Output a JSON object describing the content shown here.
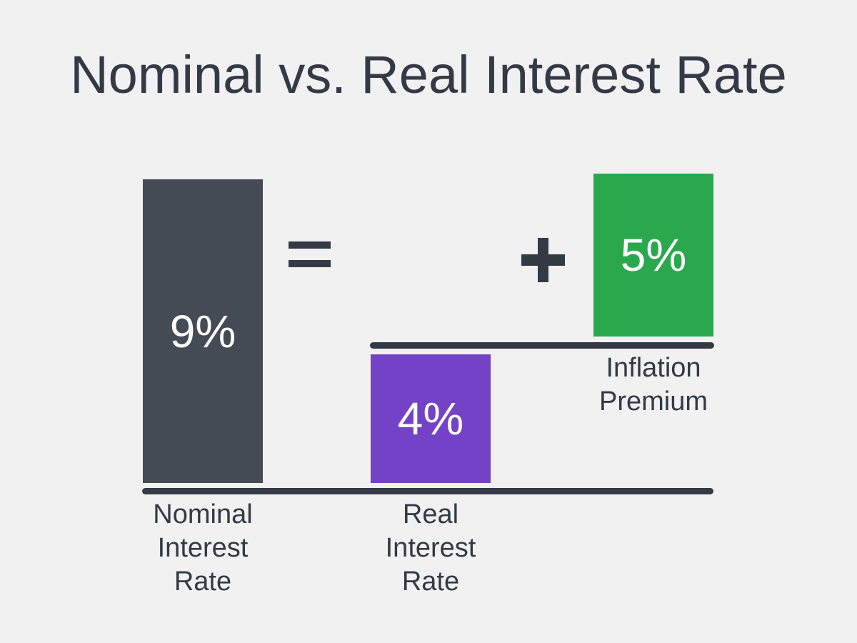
{
  "title": "Nominal vs. Real Interest Rate",
  "equation": {
    "equals_symbol": "=",
    "plus_symbol": "+"
  },
  "bars": {
    "nominal": {
      "value": "9%",
      "label": "Nominal\nInterest\nRate"
    },
    "real": {
      "value": "4%",
      "label": "Real\nInterest\nRate"
    },
    "inflation": {
      "value": "5%",
      "label": "Inflation\nPremium"
    }
  },
  "colors": {
    "background": "#f1f1f2",
    "ink": "#333a44",
    "nominal_bar": "#454b55",
    "real_bar": "#7342c6",
    "inflation_bar": "#2ba84e",
    "value_text": "#ffffff"
  },
  "chart_data": {
    "type": "bar",
    "title": "Nominal vs. Real Interest Rate",
    "categories": [
      "Nominal Interest Rate",
      "Real Interest Rate",
      "Inflation Premium"
    ],
    "values": [
      9,
      4,
      5
    ],
    "unit": "percent",
    "data_labels": [
      "9%",
      "4%",
      "5%"
    ],
    "relationship": "Nominal Interest Rate = Real Interest Rate + Inflation Premium",
    "bar_colors": [
      "#454b55",
      "#7342c6",
      "#2ba84e"
    ],
    "legend": "none",
    "grid": false
  }
}
